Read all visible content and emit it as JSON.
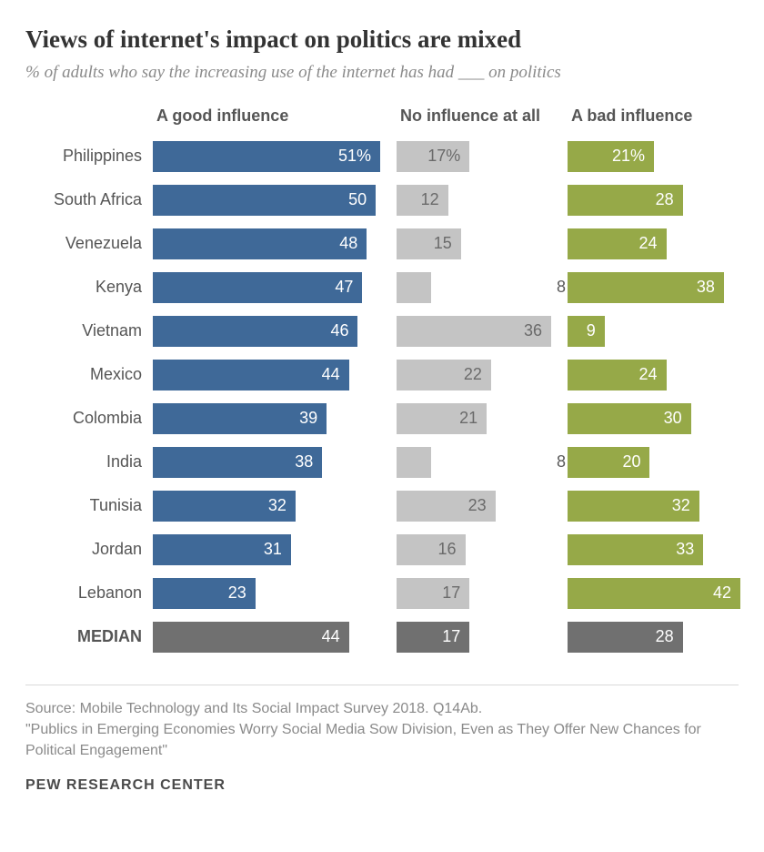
{
  "title": "Views of internet's impact on politics are mixed",
  "subtitle": "% of adults who say the increasing use of the internet has had ___ on politics",
  "columns": {
    "good": {
      "label": "A good influence",
      "color": "#3f6998",
      "max": 51,
      "header_fontsize": 18
    },
    "none": {
      "label": "No influence at all",
      "color": "#c4c4c4",
      "max": 36,
      "header_fontsize": 18,
      "text_color": "#6a6a6a"
    },
    "bad": {
      "label": "A bad influence",
      "color": "#96a948",
      "max": 42,
      "header_fontsize": 18
    }
  },
  "median_color": "#707070",
  "label_fontsize": 18,
  "value_fontsize": 18,
  "rows": [
    {
      "name": "Philippines",
      "good": 51,
      "none": 17,
      "bad": 21,
      "suffix": "%"
    },
    {
      "name": "South Africa",
      "good": 50,
      "none": 12,
      "bad": 28
    },
    {
      "name": "Venezuela",
      "good": 48,
      "none": 15,
      "bad": 24
    },
    {
      "name": "Kenya",
      "good": 47,
      "none": 8,
      "bad": 38
    },
    {
      "name": "Vietnam",
      "good": 46,
      "none": 36,
      "bad": 9
    },
    {
      "name": "Mexico",
      "good": 44,
      "none": 22,
      "bad": 24
    },
    {
      "name": "Colombia",
      "good": 39,
      "none": 21,
      "bad": 30
    },
    {
      "name": "India",
      "good": 38,
      "none": 8,
      "bad": 20
    },
    {
      "name": "Tunisia",
      "good": 32,
      "none": 23,
      "bad": 32
    },
    {
      "name": "Jordan",
      "good": 31,
      "none": 16,
      "bad": 33
    },
    {
      "name": "Lebanon",
      "good": 23,
      "none": 17,
      "bad": 42
    },
    {
      "name": "MEDIAN",
      "good": 44,
      "none": 17,
      "bad": 28,
      "is_median": true
    }
  ],
  "footer": {
    "source": "Source: Mobile Technology and Its Social Impact Survey 2018. Q14Ab.",
    "quote": "\"Publics in Emerging Economies Worry Social Media Sow Division, Even as They Offer New Chances for Political Engagement\"",
    "fontsize": 16
  },
  "brand": "PEW RESEARCH CENTER",
  "title_fontsize": 27,
  "subtitle_fontsize": 19
}
